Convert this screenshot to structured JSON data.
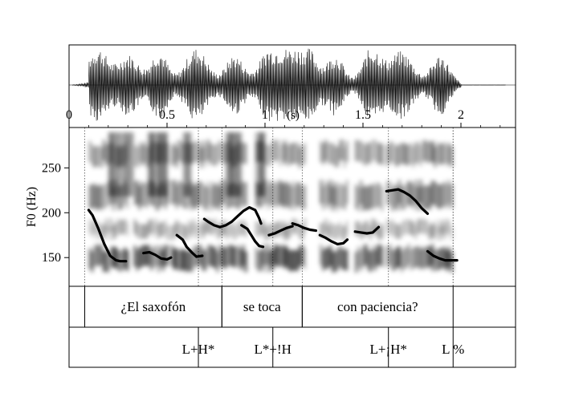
{
  "time_axis": {
    "ticks": [
      {
        "t": 0,
        "label": "0"
      },
      {
        "t": 0.5,
        "label": "0.5"
      },
      {
        "t": 1,
        "label": "1"
      },
      {
        "t": 1.5,
        "label": "1.5"
      },
      {
        "t": 2,
        "label": "2"
      }
    ],
    "unit_label": "(s)",
    "range": [
      0,
      2.25
    ]
  },
  "f0_axis": {
    "label": "F0 (Hz)",
    "ticks": [
      150,
      200,
      250
    ],
    "range": [
      118,
      295
    ]
  },
  "words_tier": {
    "items": [
      {
        "label": "¿El saxofón",
        "start": 0.08,
        "end": 0.78
      },
      {
        "label": "se toca",
        "start": 0.78,
        "end": 1.19
      },
      {
        "label": "con paciencia?",
        "start": 1.19,
        "end": 1.96
      }
    ]
  },
  "tones_tier": {
    "items": [
      {
        "label": "L+H*",
        "t": 0.66
      },
      {
        "label": "L*+!H",
        "t": 1.04
      },
      {
        "label": "L+¡H*",
        "t": 1.63
      },
      {
        "label": "L %",
        "t": 1.96
      }
    ]
  },
  "chart_data": {
    "type": "line",
    "title": "",
    "xlabel": "(s)",
    "ylabel": "F0 (Hz)",
    "xlim": [
      0,
      2.25
    ],
    "ylim": [
      118,
      295
    ],
    "series": [
      {
        "x": [
          0.1,
          0.12,
          0.15,
          0.18,
          0.21,
          0.24,
          0.26,
          0.29
        ],
        "y": [
          203,
          197,
          182,
          165,
          152,
          147,
          146,
          146
        ]
      },
      {
        "x": [
          0.38,
          0.41,
          0.44,
          0.47,
          0.5,
          0.52
        ],
        "y": [
          155,
          156,
          153,
          149,
          148,
          150
        ]
      },
      {
        "x": [
          0.55,
          0.58,
          0.6,
          0.63,
          0.65,
          0.68
        ],
        "y": [
          175,
          170,
          162,
          155,
          151,
          152
        ]
      },
      {
        "x": [
          0.69,
          0.71,
          0.74,
          0.77,
          0.8,
          0.83,
          0.86,
          0.89,
          0.92,
          0.95,
          0.97,
          0.98
        ],
        "y": [
          193,
          190,
          186,
          184,
          186,
          190,
          196,
          202,
          206,
          203,
          194,
          188
        ]
      },
      {
        "x": [
          0.88,
          0.91,
          0.93,
          0.95,
          0.97,
          0.99
        ],
        "y": [
          186,
          182,
          175,
          168,
          163,
          162
        ]
      },
      {
        "x": [
          1.02,
          1.05,
          1.08,
          1.11,
          1.14
        ],
        "y": [
          175,
          177,
          180,
          183,
          185
        ]
      },
      {
        "x": [
          1.14,
          1.17,
          1.2,
          1.23,
          1.26
        ],
        "y": [
          188,
          186,
          183,
          181,
          180
        ]
      },
      {
        "x": [
          1.28,
          1.31,
          1.34,
          1.37,
          1.4,
          1.42
        ],
        "y": [
          175,
          172,
          168,
          165,
          166,
          170
        ]
      },
      {
        "x": [
          1.46,
          1.49,
          1.52,
          1.55,
          1.58
        ],
        "y": [
          179,
          178,
          177,
          178,
          184
        ]
      },
      {
        "x": [
          1.62,
          1.65,
          1.68,
          1.71,
          1.74,
          1.77,
          1.8,
          1.83
        ],
        "y": [
          224,
          225,
          226,
          223,
          219,
          213,
          205,
          199
        ]
      },
      {
        "x": [
          1.83,
          1.86,
          1.89,
          1.92,
          1.95,
          1.98
        ],
        "y": [
          157,
          152,
          149,
          147,
          147,
          147
        ]
      }
    ]
  }
}
